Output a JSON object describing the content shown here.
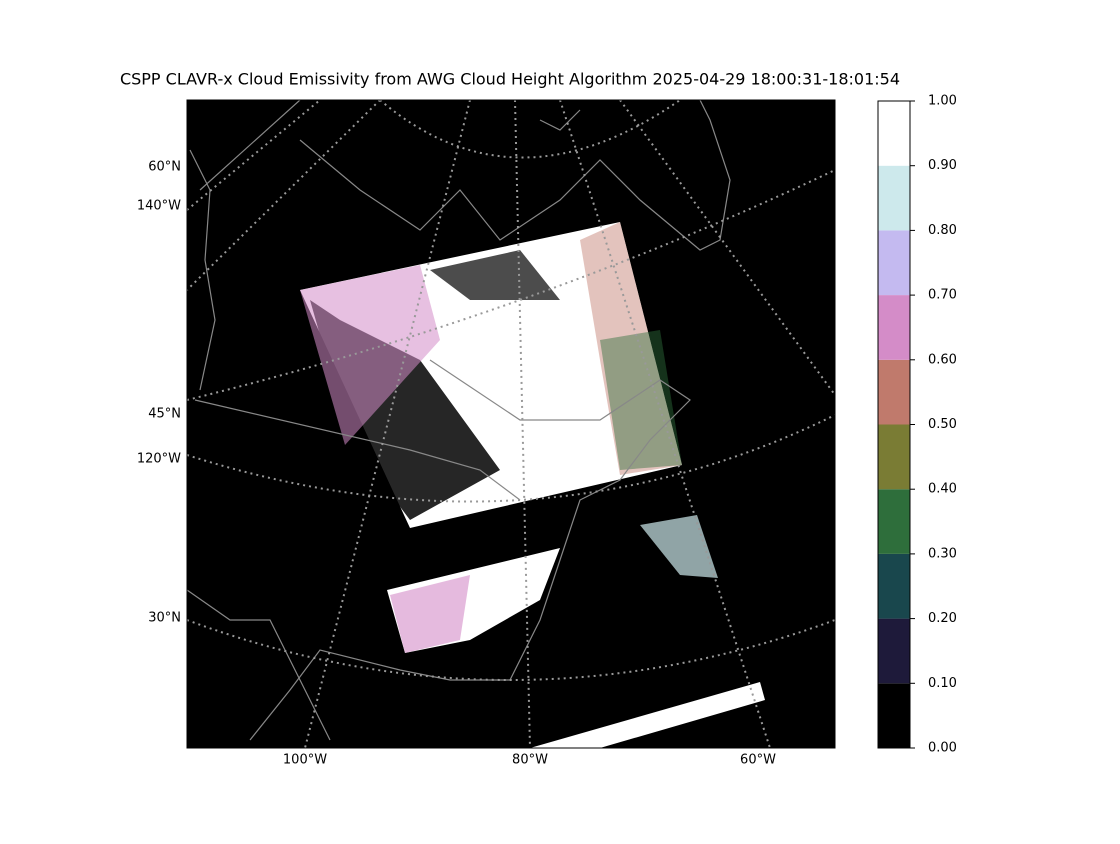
{
  "title": "CSPP CLAVR-x Cloud Emissivity from AWG Cloud Height Algorithm 2025-04-29 18:00:31-18:01:54",
  "map": {
    "lat_labels": [
      "60°N",
      "45°N",
      "30°N"
    ],
    "lon_left_labels": [
      "140°W",
      "120°W"
    ],
    "lon_bottom_labels": [
      "100°W",
      "80°W",
      "60°W"
    ]
  },
  "colorbar": {
    "ticks": [
      {
        "value": 0,
        "label": "0.00"
      },
      {
        "value": 0.1,
        "label": "0.10"
      },
      {
        "value": 0.2,
        "label": "0.20"
      },
      {
        "value": 0.3,
        "label": "0.30"
      },
      {
        "value": 0.4,
        "label": "0.40"
      },
      {
        "value": 0.5,
        "label": "0.50"
      },
      {
        "value": 0.6,
        "label": "0.60"
      },
      {
        "value": 0.7,
        "label": "0.70"
      },
      {
        "value": 0.8,
        "label": "0.80"
      },
      {
        "value": 0.9,
        "label": "0.90"
      },
      {
        "value": 1,
        "label": "1.00"
      }
    ],
    "colors": [
      "#000000",
      "#1e1a3a",
      "#19474d",
      "#2e6e3b",
      "#7a7c34",
      "#c07a6c",
      "#d48cc8",
      "#c4baf0",
      "#cde9ec",
      "#ffffff"
    ]
  }
}
